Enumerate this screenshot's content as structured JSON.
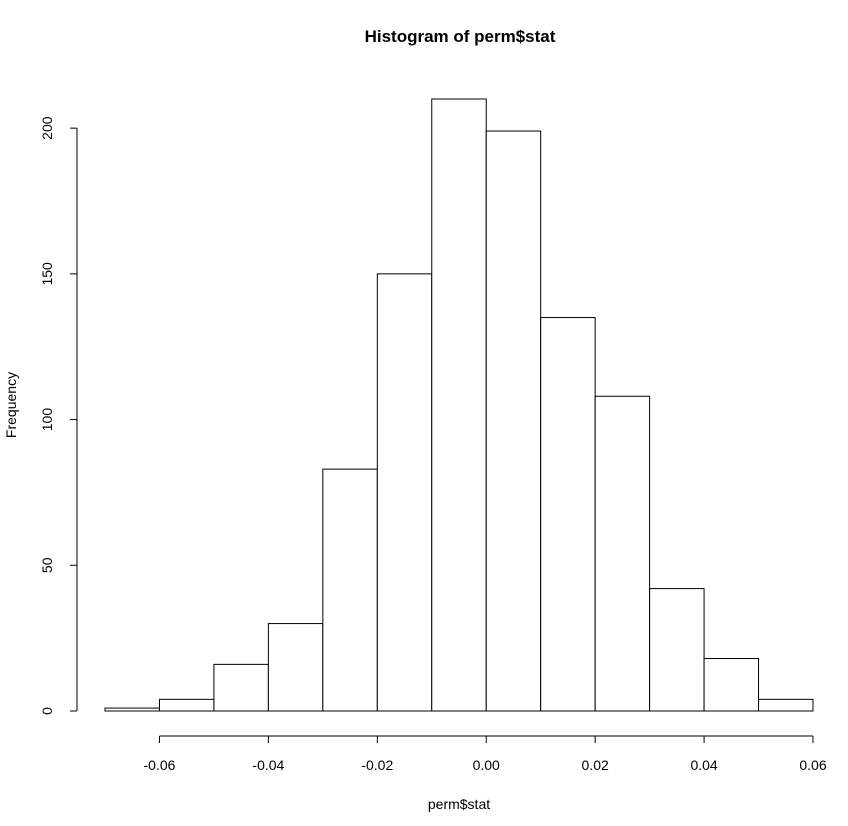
{
  "chart_data": {
    "type": "bar",
    "title": "Histogram of perm$stat",
    "xlabel": "perm$stat",
    "ylabel": "Frequency",
    "bin_edges": [
      -0.07,
      -0.06,
      -0.05,
      -0.04,
      -0.03,
      -0.02,
      -0.01,
      0.0,
      0.01,
      0.02,
      0.03,
      0.04,
      0.05,
      0.06
    ],
    "values": [
      1,
      4,
      16,
      30,
      83,
      150,
      210,
      199,
      135,
      108,
      42,
      18,
      4
    ],
    "xlim": [
      -0.07,
      0.06
    ],
    "ylim": [
      0,
      210
    ],
    "x_ticks": [
      -0.06,
      -0.04,
      -0.02,
      0.0,
      0.02,
      0.04,
      0.06
    ],
    "x_tick_labels": [
      "-0.06",
      "-0.04",
      "-0.02",
      "0.00",
      "0.02",
      "0.04",
      "0.06"
    ],
    "y_ticks": [
      0,
      50,
      100,
      150,
      200
    ],
    "y_tick_labels": [
      "0",
      "50",
      "100",
      "150",
      "200"
    ],
    "grid": false,
    "colors": {
      "bar_fill": "#ffffff",
      "bar_stroke": "#000000"
    }
  }
}
